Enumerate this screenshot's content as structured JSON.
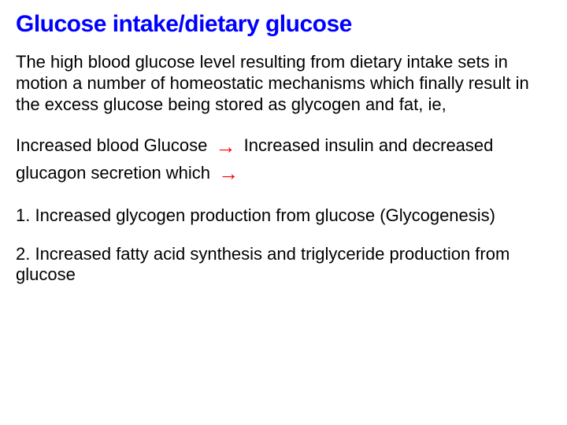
{
  "title": "Glucose intake/dietary glucose",
  "intro": "The high blood glucose level resulting from dietary intake sets in motion a number of homeostatic mechanisms which finally result in the excess glucose being stored as glycogen and fat, ie,",
  "flow": {
    "part1": "Increased blood Glucose",
    "arrow1": "→",
    "part2": " Increased insulin and decreased glucagon secretion which",
    "arrow2": "→"
  },
  "items": [
    "1. Increased glycogen production from glucose (Glycogenesis)",
    "2. Increased fatty acid synthesis and triglyceride production from glucose"
  ],
  "colors": {
    "title": "#0000ff",
    "body": "#000000",
    "arrow": "#ff0000",
    "background": "#ffffff"
  },
  "typography": {
    "title_fontsize": 30,
    "body_fontsize": 22,
    "title_weight": "bold",
    "font_family": "Arial"
  }
}
